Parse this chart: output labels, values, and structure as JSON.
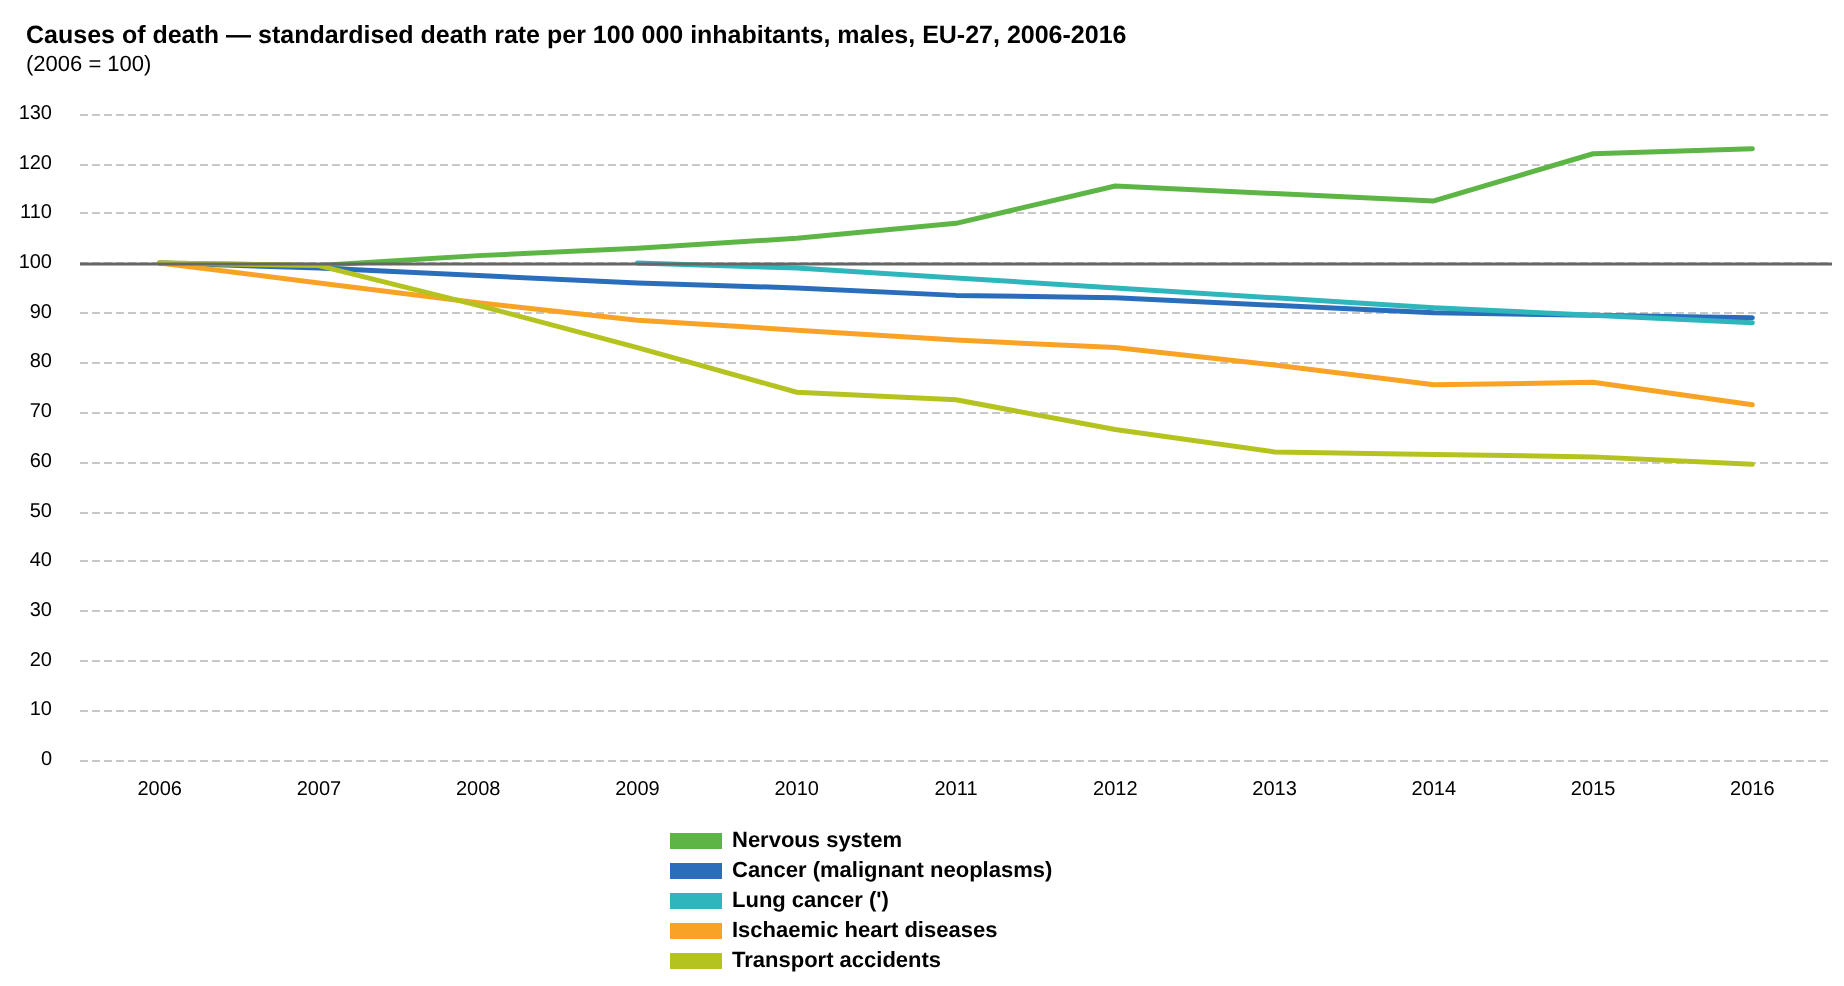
{
  "chart_data": {
    "type": "line",
    "title": "Causes of death — standardised death rate per 100 000 inhabitants, males, EU-27, 2006-2016",
    "subtitle": "(2006 = 100)",
    "categories": [
      "2006",
      "2007",
      "2008",
      "2009",
      "2010",
      "2011",
      "2012",
      "2013",
      "2014",
      "2015",
      "2016"
    ],
    "series": [
      {
        "name": "Nervous system",
        "color": "#5db546",
        "values": [
          100,
          99.5,
          101.5,
          103,
          105,
          108,
          115.5,
          114,
          112.5,
          122,
          123
        ]
      },
      {
        "name": "Cancer (malignant neoplasms)",
        "color": "#2a6ebb",
        "values": [
          100,
          99,
          97.5,
          96,
          95,
          93.5,
          93,
          91.5,
          90,
          89.5,
          89
        ]
      },
      {
        "name": "Lung cancer (')",
        "color": "#2fb6bc",
        "values": [
          null,
          null,
          null,
          100,
          99,
          97,
          95,
          93,
          91,
          89.5,
          88
        ]
      },
      {
        "name": "Ischaemic heart diseases",
        "color": "#f8a325",
        "values": [
          100,
          96,
          92,
          88.5,
          86.5,
          84.5,
          83,
          79.5,
          75.5,
          76,
          71.5
        ]
      },
      {
        "name": "Transport accidents",
        "color": "#b5c320",
        "values": [
          100,
          99.5,
          91.5,
          83,
          74,
          72.5,
          66.5,
          62,
          61.5,
          61,
          59.5
        ]
      }
    ],
    "ylim": [
      0,
      130
    ],
    "yticks": [
      0,
      10,
      20,
      30,
      40,
      50,
      60,
      70,
      80,
      90,
      100,
      110,
      120,
      130
    ],
    "grid": "y",
    "legend": "bottom",
    "marker": "none",
    "line_style": "solid",
    "ref_lines": [
      {
        "axis": "y",
        "value": 100,
        "color": "#666666",
        "line_style": "solid"
      }
    ]
  }
}
